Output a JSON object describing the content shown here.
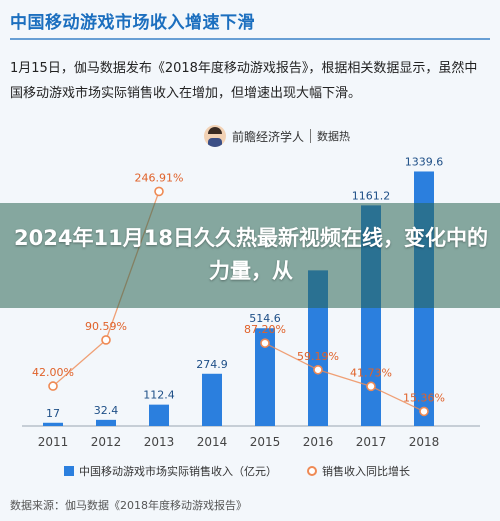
{
  "header": {
    "headline": "中国移动游戏市场收入增速下滑",
    "intro": "1月15日，伽马数据发布《2018年度移动游戏报告》，根据相关数据显示，虽然中国移动游戏市场实际销售收入在增加，但增速出现大幅下滑。"
  },
  "brand": {
    "name": "前瞻经济学人",
    "sub": "数据热",
    "icon": "person-avatar-icon"
  },
  "banner": {
    "title": "2024年11月18日久久热最新视频在线，变化中的力量，从"
  },
  "chart_data": {
    "type": "bar",
    "categories": [
      "2011",
      "2012",
      "2013",
      "2014",
      "2015",
      "2016",
      "2017",
      "2018"
    ],
    "series": [
      {
        "name": "中国移动游戏市场实际销售收入（亿元）",
        "kind": "bar",
        "values": [
          17,
          32.4,
          112.4,
          274.9,
          514.6,
          819.2,
          1161.2,
          1339.6
        ],
        "labels": [
          "17",
          "32.4",
          "112.4",
          "274.9",
          "514.6",
          "",
          "1161.2",
          "1339.6"
        ],
        "color": "#2b7fde"
      },
      {
        "name": "销售收入同比增长",
        "kind": "line",
        "values": [
          42.0,
          90.59,
          246.91,
          null,
          87.2,
          59.19,
          41.73,
          15.36
        ],
        "labels": [
          "42.00%",
          "90.59%",
          "246.91%",
          "",
          "87.20%",
          "59.19%",
          "41.73%",
          "15.36%"
        ],
        "color": "#ef8a54"
      }
    ],
    "xlabel": "",
    "ylabel": "",
    "ylim": [
      0,
      1400
    ],
    "y2lim": [
      0,
      280
    ],
    "grid": false,
    "legend": "bottom"
  },
  "legend": {
    "bar_label": "中国移动游戏市场实际销售收入（亿元）",
    "line_label": "销售收入同比增长"
  },
  "source": "数据来源：伽马数据《2018年度移动游戏报告》"
}
